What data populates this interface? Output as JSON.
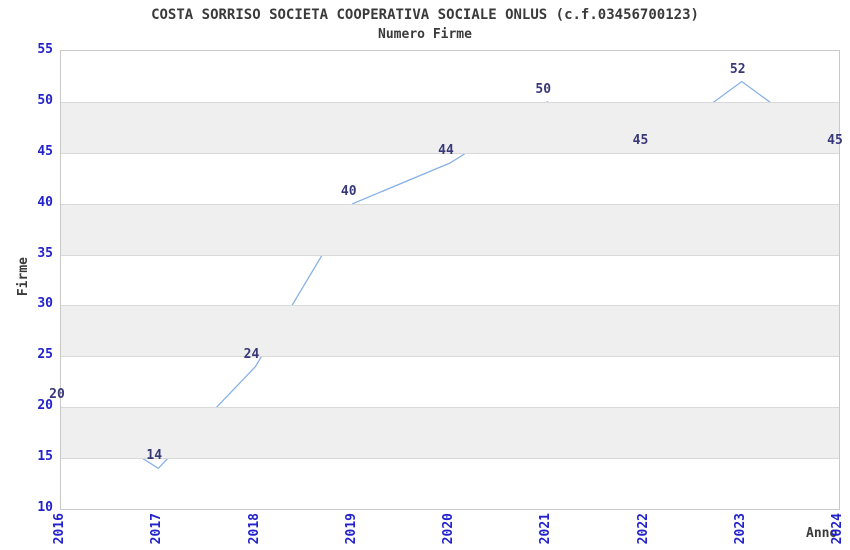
{
  "title": "COSTA SORRISO SOCIETA COOPERATIVA SOCIALE ONLUS (c.f.03456700123)",
  "subtitle": "Numero Firme",
  "chart_data": {
    "type": "line",
    "title": "COSTA SORRISO SOCIETA COOPERATIVA SOCIALE ONLUS (c.f.03456700123)",
    "subtitle": "Numero Firme",
    "x": [
      2016,
      2017,
      2018,
      2019,
      2020,
      2021,
      2022,
      2023,
      2024
    ],
    "series": [
      {
        "name": "Numero Firme",
        "values": [
          20,
          14,
          24,
          40,
          44,
          50,
          45,
          52,
          45
        ]
      }
    ],
    "xlabel": "Anno",
    "ylabel": "Firme",
    "ylim": [
      10,
      55
    ],
    "ytick_step": 5,
    "yticks": [
      10,
      15,
      20,
      25,
      30,
      35,
      40,
      45,
      50,
      55
    ],
    "grid": true,
    "alternating_bands": true,
    "legend_position": "none",
    "point_labels_visible": true
  },
  "colors": {
    "background": "#ffffff",
    "title_text": "#3a3a3a",
    "axis_tick_label": "#2222cc",
    "data_label": "#383878",
    "line": "#88b2e6",
    "band_fill": "#efefef",
    "gridline": "#d9d9d9",
    "plot_border": "#c9c9c9"
  }
}
